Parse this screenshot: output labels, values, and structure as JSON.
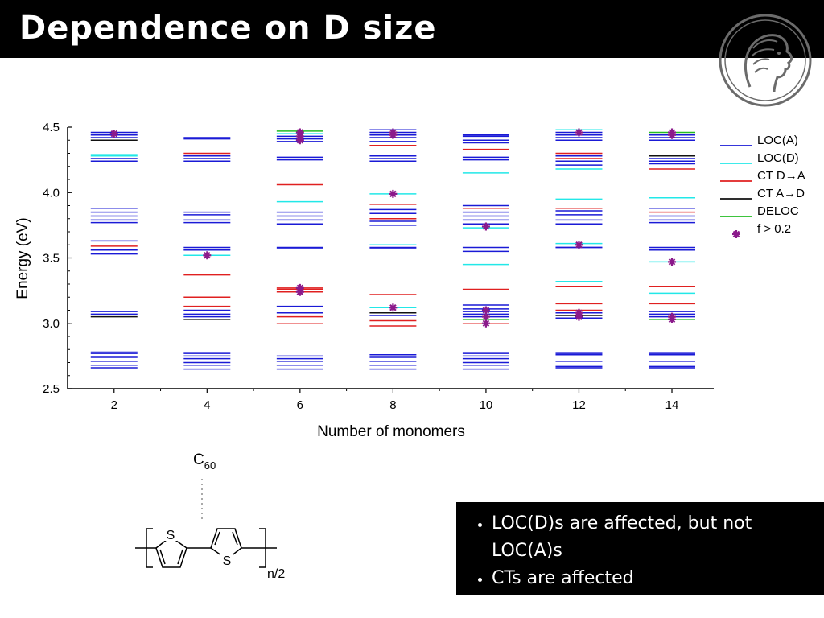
{
  "slide": {
    "title": "Dependence on D size",
    "bullets": [
      "LOC(D)s are affected, but not LOC(A)s",
      "CTs are affected"
    ],
    "molecule": {
      "acceptor": "C",
      "acceptor_subscript": "60",
      "ring_atom": "S",
      "repeat_subscript": "n/2"
    },
    "logo_icon": "minerva-head-icon"
  },
  "chart_data": {
    "type": "scatter",
    "xlabel": "Number of monomers",
    "ylabel": "Energy (eV)",
    "xticks": [
      2,
      4,
      6,
      8,
      10,
      12,
      14
    ],
    "yticks": [
      2.5,
      3.0,
      3.5,
      4.0,
      4.5
    ],
    "yticklabels": [
      "2.5",
      "3.0",
      "3.5",
      "4.0",
      "4.5"
    ],
    "xlim": [
      1,
      14.9
    ],
    "ylim": [
      2.5,
      4.5
    ],
    "grid": false,
    "legend_position": "right",
    "colors": {
      "LOC(A)": "#1a1ad6",
      "LOC(D)": "#22e8e8",
      "CT D→A": "#e02020",
      "CT A→D": "#111111",
      "DELOC": "#22bb22",
      "f > 0.2": "#8b1a8b"
    },
    "legend": [
      {
        "label": "LOC(A)",
        "kind": "line",
        "color": "#1a1ad6"
      },
      {
        "label": "LOC(D)",
        "kind": "line",
        "color": "#22e8e8"
      },
      {
        "label": "CT D→A",
        "kind": "line",
        "color": "#e02020"
      },
      {
        "label": "CT A→D",
        "kind": "line",
        "color": "#111111"
      },
      {
        "label": "DELOC",
        "kind": "line",
        "color": "#22bb22"
      },
      {
        "label": "f  > 0.2",
        "kind": "marker",
        "color": "#8b1a8b"
      }
    ],
    "series": [
      {
        "x": 2,
        "levels": [
          {
            "y": 2.66,
            "t": "LOC(A)"
          },
          {
            "y": 2.68,
            "t": "LOC(A)"
          },
          {
            "y": 2.71,
            "t": "LOC(A)"
          },
          {
            "y": 2.74,
            "t": "LOC(A)"
          },
          {
            "y": 2.77,
            "t": "LOC(A)"
          },
          {
            "y": 2.78,
            "t": "LOC(A)"
          },
          {
            "y": 3.05,
            "t": "CT A→D"
          },
          {
            "y": 3.07,
            "t": "LOC(A)"
          },
          {
            "y": 3.09,
            "t": "LOC(A)"
          },
          {
            "y": 3.53,
            "t": "LOC(A)"
          },
          {
            "y": 3.56,
            "t": "LOC(A)"
          },
          {
            "y": 3.59,
            "t": "CT D→A"
          },
          {
            "y": 3.63,
            "t": "LOC(A)"
          },
          {
            "y": 3.77,
            "t": "LOC(A)"
          },
          {
            "y": 3.79,
            "t": "LOC(A)"
          },
          {
            "y": 3.82,
            "t": "LOC(A)"
          },
          {
            "y": 3.85,
            "t": "LOC(A)"
          },
          {
            "y": 3.88,
            "t": "LOC(A)"
          },
          {
            "y": 4.24,
            "t": "LOC(A)"
          },
          {
            "y": 4.26,
            "t": "LOC(A)"
          },
          {
            "y": 4.28,
            "t": "LOC(D)"
          },
          {
            "y": 4.29,
            "t": "LOC(D)"
          },
          {
            "y": 4.4,
            "t": "CT A→D"
          },
          {
            "y": 4.42,
            "t": "LOC(A)"
          },
          {
            "y": 4.44,
            "t": "LOC(A)"
          },
          {
            "y": 4.46,
            "t": "LOC(A)"
          }
        ],
        "osc": [
          4.45
        ]
      },
      {
        "x": 4,
        "levels": [
          {
            "y": 2.65,
            "t": "LOC(A)"
          },
          {
            "y": 2.68,
            "t": "LOC(A)"
          },
          {
            "y": 2.7,
            "t": "LOC(A)"
          },
          {
            "y": 2.73,
            "t": "LOC(A)"
          },
          {
            "y": 2.75,
            "t": "LOC(A)"
          },
          {
            "y": 2.77,
            "t": "LOC(A)"
          },
          {
            "y": 3.03,
            "t": "CT A→D"
          },
          {
            "y": 3.05,
            "t": "LOC(A)"
          },
          {
            "y": 3.07,
            "t": "LOC(A)"
          },
          {
            "y": 3.1,
            "t": "LOC(A)"
          },
          {
            "y": 3.13,
            "t": "CT D→A"
          },
          {
            "y": 3.2,
            "t": "CT D→A"
          },
          {
            "y": 3.37,
            "t": "CT D→A"
          },
          {
            "y": 3.52,
            "t": "LOC(D)"
          },
          {
            "y": 3.56,
            "t": "LOC(A)"
          },
          {
            "y": 3.58,
            "t": "LOC(A)"
          },
          {
            "y": 3.77,
            "t": "LOC(A)"
          },
          {
            "y": 3.79,
            "t": "LOC(A)"
          },
          {
            "y": 3.83,
            "t": "LOC(A)"
          },
          {
            "y": 3.85,
            "t": "LOC(A)"
          },
          {
            "y": 4.24,
            "t": "LOC(A)"
          },
          {
            "y": 4.26,
            "t": "LOC(A)"
          },
          {
            "y": 4.28,
            "t": "LOC(A)"
          },
          {
            "y": 4.3,
            "t": "CT D→A"
          },
          {
            "y": 4.41,
            "t": "LOC(A)"
          },
          {
            "y": 4.42,
            "t": "LOC(A)"
          }
        ],
        "osc": [
          3.52
        ]
      },
      {
        "x": 6,
        "levels": [
          {
            "y": 2.65,
            "t": "LOC(A)"
          },
          {
            "y": 2.68,
            "t": "LOC(A)"
          },
          {
            "y": 2.71,
            "t": "LOC(A)"
          },
          {
            "y": 2.73,
            "t": "LOC(A)"
          },
          {
            "y": 2.75,
            "t": "LOC(A)"
          },
          {
            "y": 3.0,
            "t": "CT D→A"
          },
          {
            "y": 3.05,
            "t": "CT D→A"
          },
          {
            "y": 3.08,
            "t": "LOC(A)"
          },
          {
            "y": 3.13,
            "t": "LOC(A)"
          },
          {
            "y": 3.24,
            "t": "CT D→A"
          },
          {
            "y": 3.26,
            "t": "CT D→A"
          },
          {
            "y": 3.27,
            "t": "CT D→A"
          },
          {
            "y": 3.57,
            "t": "LOC(A)"
          },
          {
            "y": 3.58,
            "t": "LOC(A)"
          },
          {
            "y": 3.76,
            "t": "LOC(A)"
          },
          {
            "y": 3.79,
            "t": "LOC(A)"
          },
          {
            "y": 3.82,
            "t": "LOC(A)"
          },
          {
            "y": 3.85,
            "t": "LOC(A)"
          },
          {
            "y": 3.93,
            "t": "LOC(D)"
          },
          {
            "y": 4.06,
            "t": "CT D→A"
          },
          {
            "y": 4.25,
            "t": "LOC(A)"
          },
          {
            "y": 4.27,
            "t": "LOC(A)"
          },
          {
            "y": 4.39,
            "t": "LOC(A)"
          },
          {
            "y": 4.41,
            "t": "LOC(A)"
          },
          {
            "y": 4.43,
            "t": "LOC(A)"
          },
          {
            "y": 4.45,
            "t": "LOC(D)"
          },
          {
            "y": 4.47,
            "t": "DELOC"
          }
        ],
        "osc": [
          3.24,
          3.27,
          4.4,
          4.43,
          4.46
        ]
      },
      {
        "x": 8,
        "levels": [
          {
            "y": 2.65,
            "t": "LOC(A)"
          },
          {
            "y": 2.68,
            "t": "LOC(A)"
          },
          {
            "y": 2.71,
            "t": "LOC(A)"
          },
          {
            "y": 2.74,
            "t": "LOC(A)"
          },
          {
            "y": 2.76,
            "t": "LOC(A)"
          },
          {
            "y": 2.98,
            "t": "CT D→A"
          },
          {
            "y": 3.02,
            "t": "CT D→A"
          },
          {
            "y": 3.06,
            "t": "LOC(A)"
          },
          {
            "y": 3.08,
            "t": "CT A→D"
          },
          {
            "y": 3.12,
            "t": "LOC(D)"
          },
          {
            "y": 3.22,
            "t": "CT D→A"
          },
          {
            "y": 3.57,
            "t": "LOC(A)"
          },
          {
            "y": 3.58,
            "t": "LOC(A)"
          },
          {
            "y": 3.6,
            "t": "LOC(D)"
          },
          {
            "y": 3.75,
            "t": "LOC(A)"
          },
          {
            "y": 3.78,
            "t": "LOC(A)"
          },
          {
            "y": 3.8,
            "t": "CT D→A"
          },
          {
            "y": 3.84,
            "t": "LOC(A)"
          },
          {
            "y": 3.87,
            "t": "LOC(A)"
          },
          {
            "y": 3.91,
            "t": "CT D→A"
          },
          {
            "y": 3.99,
            "t": "LOC(D)"
          },
          {
            "y": 4.24,
            "t": "LOC(A)"
          },
          {
            "y": 4.26,
            "t": "LOC(A)"
          },
          {
            "y": 4.28,
            "t": "LOC(A)"
          },
          {
            "y": 4.36,
            "t": "CT D→A"
          },
          {
            "y": 4.39,
            "t": "LOC(A)"
          },
          {
            "y": 4.42,
            "t": "LOC(A)"
          },
          {
            "y": 4.44,
            "t": "LOC(A)"
          },
          {
            "y": 4.46,
            "t": "LOC(A)"
          },
          {
            "y": 4.48,
            "t": "LOC(A)"
          }
        ],
        "osc": [
          3.12,
          3.99,
          4.44,
          4.46
        ]
      },
      {
        "x": 10,
        "levels": [
          {
            "y": 2.65,
            "t": "LOC(A)"
          },
          {
            "y": 2.68,
            "t": "LOC(A)"
          },
          {
            "y": 2.7,
            "t": "LOC(A)"
          },
          {
            "y": 2.73,
            "t": "LOC(A)"
          },
          {
            "y": 2.75,
            "t": "LOC(A)"
          },
          {
            "y": 2.77,
            "t": "LOC(A)"
          },
          {
            "y": 3.0,
            "t": "CT D→A"
          },
          {
            "y": 3.03,
            "t": "DELOC"
          },
          {
            "y": 3.05,
            "t": "LOC(A)"
          },
          {
            "y": 3.07,
            "t": "LOC(A)"
          },
          {
            "y": 3.09,
            "t": "LOC(A)"
          },
          {
            "y": 3.11,
            "t": "LOC(A)"
          },
          {
            "y": 3.14,
            "t": "LOC(A)"
          },
          {
            "y": 3.26,
            "t": "CT D→A"
          },
          {
            "y": 3.45,
            "t": "LOC(D)"
          },
          {
            "y": 3.55,
            "t": "LOC(A)"
          },
          {
            "y": 3.58,
            "t": "LOC(A)"
          },
          {
            "y": 3.73,
            "t": "LOC(D)"
          },
          {
            "y": 3.76,
            "t": "LOC(A)"
          },
          {
            "y": 3.79,
            "t": "LOC(A)"
          },
          {
            "y": 3.82,
            "t": "LOC(A)"
          },
          {
            "y": 3.85,
            "t": "LOC(A)"
          },
          {
            "y": 3.88,
            "t": "CT D→A"
          },
          {
            "y": 3.9,
            "t": "LOC(A)"
          },
          {
            "y": 4.15,
            "t": "LOC(D)"
          },
          {
            "y": 4.25,
            "t": "LOC(A)"
          },
          {
            "y": 4.27,
            "t": "LOC(A)"
          },
          {
            "y": 4.33,
            "t": "CT D→A"
          },
          {
            "y": 4.38,
            "t": "LOC(A)"
          },
          {
            "y": 4.4,
            "t": "LOC(A)"
          },
          {
            "y": 4.43,
            "t": "LOC(A)"
          },
          {
            "y": 4.44,
            "t": "LOC(A)"
          }
        ],
        "osc": [
          3.0,
          3.05,
          3.1,
          3.74
        ]
      },
      {
        "x": 12,
        "levels": [
          {
            "y": 2.66,
            "t": "LOC(A)"
          },
          {
            "y": 2.67,
            "t": "LOC(A)"
          },
          {
            "y": 2.71,
            "t": "LOC(A)"
          },
          {
            "y": 2.76,
            "t": "LOC(A)"
          },
          {
            "y": 2.77,
            "t": "LOC(A)"
          },
          {
            "y": 3.04,
            "t": "LOC(A)"
          },
          {
            "y": 3.06,
            "t": "CT A→D"
          },
          {
            "y": 3.08,
            "t": "LOC(A)"
          },
          {
            "y": 3.1,
            "t": "CT D→A"
          },
          {
            "y": 3.15,
            "t": "CT D→A"
          },
          {
            "y": 3.28,
            "t": "CT D→A"
          },
          {
            "y": 3.32,
            "t": "LOC(D)"
          },
          {
            "y": 3.58,
            "t": "LOC(A)"
          },
          {
            "y": 3.58,
            "t": "LOC(A)"
          },
          {
            "y": 3.61,
            "t": "LOC(D)"
          },
          {
            "y": 3.76,
            "t": "LOC(A)"
          },
          {
            "y": 3.79,
            "t": "LOC(A)"
          },
          {
            "y": 3.83,
            "t": "LOC(A)"
          },
          {
            "y": 3.86,
            "t": "LOC(A)"
          },
          {
            "y": 3.88,
            "t": "CT D→A"
          },
          {
            "y": 3.95,
            "t": "LOC(D)"
          },
          {
            "y": 4.18,
            "t": "LOC(D)"
          },
          {
            "y": 4.21,
            "t": "LOC(A)"
          },
          {
            "y": 4.24,
            "t": "LOC(A)"
          },
          {
            "y": 4.26,
            "t": "CT D→A"
          },
          {
            "y": 4.28,
            "t": "LOC(A)"
          },
          {
            "y": 4.3,
            "t": "CT D→A"
          },
          {
            "y": 4.4,
            "t": "LOC(A)"
          },
          {
            "y": 4.42,
            "t": "LOC(A)"
          },
          {
            "y": 4.44,
            "t": "LOC(A)"
          },
          {
            "y": 4.46,
            "t": "LOC(A)"
          },
          {
            "y": 4.48,
            "t": "LOC(D)"
          }
        ],
        "osc": [
          3.05,
          3.08,
          3.6,
          4.46
        ]
      },
      {
        "x": 14,
        "levels": [
          {
            "y": 2.66,
            "t": "LOC(A)"
          },
          {
            "y": 2.67,
            "t": "LOC(A)"
          },
          {
            "y": 2.71,
            "t": "LOC(A)"
          },
          {
            "y": 2.76,
            "t": "LOC(A)"
          },
          {
            "y": 2.77,
            "t": "LOC(A)"
          },
          {
            "y": 3.03,
            "t": "DELOC"
          },
          {
            "y": 3.05,
            "t": "LOC(A)"
          },
          {
            "y": 3.07,
            "t": "LOC(A)"
          },
          {
            "y": 3.09,
            "t": "LOC(A)"
          },
          {
            "y": 3.15,
            "t": "CT D→A"
          },
          {
            "y": 3.23,
            "t": "LOC(D)"
          },
          {
            "y": 3.28,
            "t": "CT D→A"
          },
          {
            "y": 3.47,
            "t": "LOC(D)"
          },
          {
            "y": 3.56,
            "t": "LOC(A)"
          },
          {
            "y": 3.58,
            "t": "LOC(A)"
          },
          {
            "y": 3.77,
            "t": "LOC(A)"
          },
          {
            "y": 3.79,
            "t": "LOC(A)"
          },
          {
            "y": 3.82,
            "t": "LOC(A)"
          },
          {
            "y": 3.85,
            "t": "CT D→A"
          },
          {
            "y": 3.88,
            "t": "LOC(A)"
          },
          {
            "y": 3.96,
            "t": "LOC(D)"
          },
          {
            "y": 4.18,
            "t": "CT D→A"
          },
          {
            "y": 4.22,
            "t": "LOC(A)"
          },
          {
            "y": 4.24,
            "t": "LOC(A)"
          },
          {
            "y": 4.26,
            "t": "LOC(A)"
          },
          {
            "y": 4.28,
            "t": "CT A→D"
          },
          {
            "y": 4.4,
            "t": "LOC(A)"
          },
          {
            "y": 4.42,
            "t": "LOC(A)"
          },
          {
            "y": 4.44,
            "t": "LOC(A)"
          },
          {
            "y": 4.46,
            "t": "DELOC"
          }
        ],
        "osc": [
          3.03,
          3.05,
          3.47,
          4.44,
          4.46
        ]
      }
    ]
  }
}
